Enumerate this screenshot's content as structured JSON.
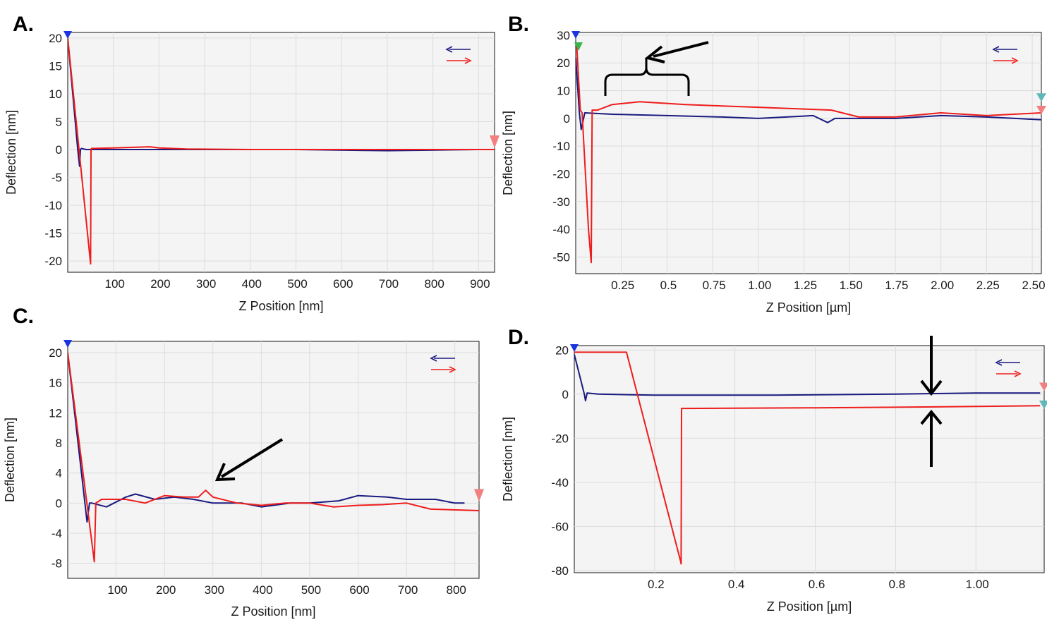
{
  "figure_title": "",
  "colors": {
    "retract": "#1a1a80",
    "approach": "#ee1c1c",
    "start_marker": "#1a35e0",
    "end_marker": "#f28080",
    "teal_marker": "#5fb8b8",
    "green_marker": "#3cb44b",
    "annotation": "#000000"
  },
  "chart_data": [
    {
      "panel": "A.",
      "type": "line",
      "xlabel": "Z Position [nm]",
      "ylabel": "Deflection [nm]",
      "xlim": [
        0,
        935
      ],
      "ylim": [
        -22,
        21
      ],
      "xticks": [
        100,
        200,
        300,
        400,
        500,
        600,
        700,
        800,
        900
      ],
      "xtick_labels": [
        "100",
        "200",
        "300",
        "400",
        "500",
        "600",
        "700",
        "800",
        "900"
      ],
      "yticks": [
        20,
        15,
        10,
        5,
        0,
        -5,
        -10,
        -15,
        -20
      ],
      "ytick_labels": [
        "20",
        "15",
        "10",
        "5",
        "0",
        "-5",
        "-10",
        "-15",
        "-20"
      ],
      "legend": "top-right",
      "series": [
        {
          "name": "retract",
          "color": "#1a1a80",
          "x": [
            0,
            22,
            26,
            28,
            30,
            40,
            100,
            300,
            500,
            700,
            900,
            935
          ],
          "y": [
            20,
            0,
            -3,
            0,
            0.2,
            0,
            0,
            0,
            0,
            -0.2,
            0,
            0
          ]
        },
        {
          "name": "approach",
          "color": "#ee1c1c",
          "x": [
            0,
            50,
            51,
            52,
            100,
            180,
            200,
            260,
            400,
            600,
            800,
            935
          ],
          "y": [
            20,
            -20.5,
            0,
            0.2,
            0.3,
            0.5,
            0.3,
            0.1,
            0,
            0,
            0,
            0
          ]
        }
      ]
    },
    {
      "panel": "B.",
      "type": "line",
      "xlabel": "Z Position [µm]",
      "ylabel": "Deflection [nm]",
      "xlim": [
        0,
        2.55
      ],
      "ylim": [
        -56,
        31
      ],
      "xticks": [
        0.25,
        0.5,
        0.75,
        1.0,
        1.25,
        1.5,
        1.75,
        2.0,
        2.25,
        2.5
      ],
      "xtick_labels": [
        "0.25",
        "0.5",
        "0.75",
        "1.00",
        "1.25",
        "1.50",
        "1.75",
        "2.00",
        "2.25",
        "2.50"
      ],
      "yticks": [
        30,
        20,
        10,
        0,
        -10,
        -20,
        -30,
        -40,
        -50
      ],
      "ytick_labels": [
        "30",
        "20",
        "10",
        "0",
        "-10",
        "-20",
        "-30",
        "-40",
        "-50"
      ],
      "legend": "top-right",
      "series": [
        {
          "name": "retract",
          "color": "#1a1a80",
          "x": [
            0,
            0.02,
            0.03,
            0.05,
            0.2,
            0.5,
            0.8,
            1.0,
            1.3,
            1.38,
            1.42,
            1.5,
            1.75,
            2.0,
            2.25,
            2.55
          ],
          "y": [
            22,
            2,
            -4,
            2,
            1.5,
            1,
            0.5,
            0,
            1,
            -1.5,
            0,
            0,
            0,
            1,
            0.5,
            -0.5
          ]
        },
        {
          "name": "approach",
          "color": "#ee1c1c",
          "x": [
            0.005,
            0.025,
            0.035,
            0.07,
            0.085,
            0.09,
            0.12,
            0.2,
            0.35,
            0.6,
            0.8,
            1.0,
            1.2,
            1.4,
            1.55,
            1.75,
            2.0,
            2.25,
            2.55
          ],
          "y": [
            27,
            3,
            2,
            -40,
            -52,
            3,
            3,
            5,
            6,
            5,
            4.5,
            4,
            3.5,
            3,
            0.5,
            0.5,
            2,
            1,
            2
          ]
        }
      ]
    },
    {
      "panel": "C.",
      "type": "line",
      "xlabel": "Z Position [nm]",
      "ylabel": "Deflection [nm]",
      "xlim": [
        0,
        850
      ],
      "ylim": [
        -10,
        21.5
      ],
      "xticks": [
        100,
        200,
        300,
        400,
        500,
        600,
        700,
        800
      ],
      "xtick_labels": [
        "100",
        "200",
        "300",
        "400",
        "500",
        "600",
        "700",
        "800"
      ],
      "yticks": [
        20,
        16,
        12,
        8,
        4,
        0,
        -4,
        -8
      ],
      "ytick_labels": [
        "20",
        "16",
        "12",
        "8",
        "4",
        "0",
        "-4",
        "-8"
      ],
      "legend": "top-right",
      "series": [
        {
          "name": "retract",
          "color": "#1a1a80",
          "x": [
            0,
            40,
            45,
            50,
            80,
            120,
            140,
            180,
            220,
            260,
            300,
            360,
            400,
            460,
            500,
            560,
            600,
            660,
            700,
            760,
            800,
            820
          ],
          "y": [
            20,
            -2.5,
            0,
            0,
            -0.5,
            0.8,
            1.2,
            0.5,
            0.8,
            0.5,
            0,
            0,
            -0.5,
            0,
            0,
            0.3,
            1,
            0.8,
            0.5,
            0.5,
            0,
            0
          ]
        },
        {
          "name": "approach",
          "color": "#ee1c1c",
          "x": [
            0,
            55,
            58,
            70,
            120,
            160,
            200,
            240,
            270,
            285,
            300,
            350,
            400,
            450,
            500,
            550,
            600,
            650,
            700,
            750,
            850
          ],
          "y": [
            20,
            -7.8,
            0,
            0.5,
            0.5,
            0,
            1,
            0.8,
            0.8,
            1.7,
            0.8,
            0,
            -0.3,
            0,
            0,
            -0.5,
            -0.3,
            -0.2,
            0,
            -0.8,
            -1
          ]
        }
      ]
    },
    {
      "panel": "D.",
      "type": "line",
      "xlabel": "Z Position [µm]",
      "ylabel": "Deflection [nm]",
      "xlim": [
        0,
        1.17
      ],
      "ylim": [
        -81,
        22
      ],
      "xticks": [
        0.2,
        0.4,
        0.6,
        0.8,
        1.0
      ],
      "xtick_labels": [
        "0.2",
        "0.4",
        "0.6",
        "0.8",
        "1.00"
      ],
      "yticks": [
        20,
        0,
        -20,
        -40,
        -60,
        -80
      ],
      "ytick_labels": [
        "20",
        "0",
        "-20",
        "-40",
        "-60",
        "-80"
      ],
      "legend": "top-right",
      "series": [
        {
          "name": "retract",
          "color": "#1a1a80",
          "x": [
            0,
            0.025,
            0.028,
            0.032,
            0.06,
            0.2,
            0.5,
            0.8,
            1.0,
            1.16
          ],
          "y": [
            18,
            0,
            -3,
            0.5,
            0,
            -0.5,
            -0.5,
            0,
            0.5,
            0.5
          ]
        },
        {
          "name": "approach",
          "color": "#ee1c1c",
          "x": [
            0,
            0.13,
            0.265,
            0.266,
            0.267,
            0.6,
            0.9,
            1.16
          ],
          "y": [
            19,
            19,
            -76,
            -77,
            -6.5,
            -6.2,
            -5.8,
            -5.3
          ]
        }
      ]
    }
  ]
}
